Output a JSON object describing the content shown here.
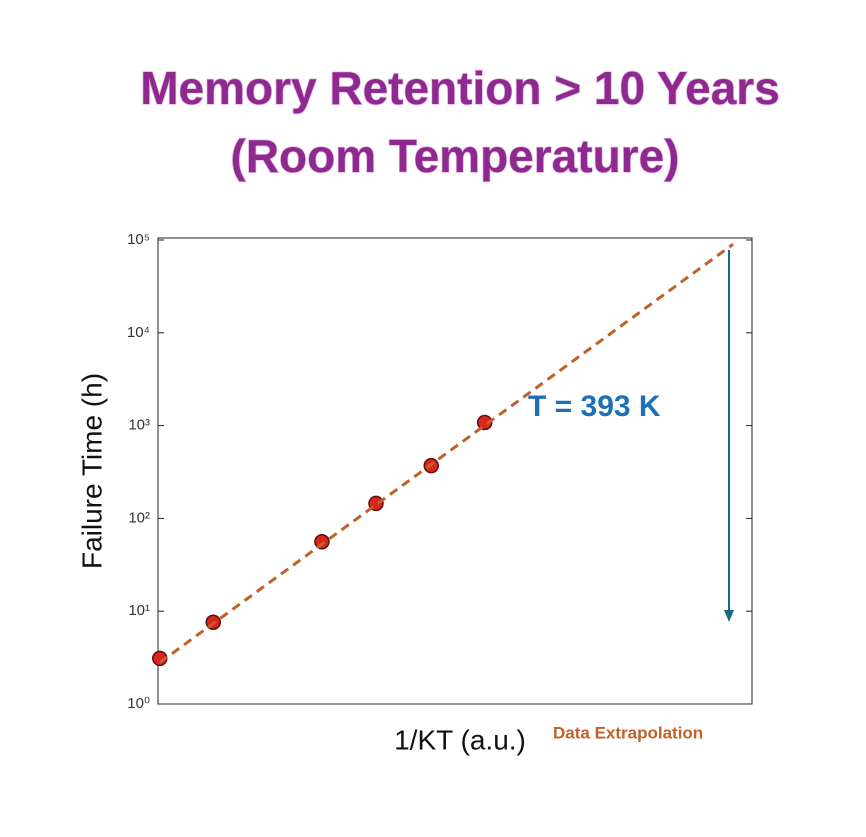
{
  "chart_data": {
    "type": "scatter",
    "title": [
      "Memory Retention > 10 Years",
      "(Room Temperature)"
    ],
    "x_label": "1/KT (a.u.)",
    "y_label": "Failure Time (h)",
    "xlim": [
      0,
      100
    ],
    "ylim": [
      1,
      100000
    ],
    "y_scale": "log",
    "grid": false,
    "yticks": [
      {
        "value": 1,
        "label": "10⁰"
      },
      {
        "value": 10,
        "label": "10¹"
      },
      {
        "value": 100,
        "label": "10²"
      },
      {
        "value": 1000,
        "label": "10³"
      },
      {
        "value": 10000,
        "label": "10⁴"
      },
      {
        "value": 100000,
        "label": "10⁵"
      }
    ],
    "series": [
      {
        "color": "#d9261c",
        "x": [
          0.3,
          9.3,
          27.6,
          36.7,
          46,
          55
        ],
        "values": [
          3.1,
          7.6,
          56,
          145,
          370,
          1080
        ]
      },
      {
        "name": "Data Extrapolation",
        "color": "#c0602a",
        "line_style": "dashed",
        "x": [
          0.3,
          96.8
        ],
        "values": [
          2.8,
          90000
        ]
      }
    ],
    "annotations": [
      {
        "text": "T = 393 K",
        "color": "#1f6fb5"
      }
    ]
  }
}
